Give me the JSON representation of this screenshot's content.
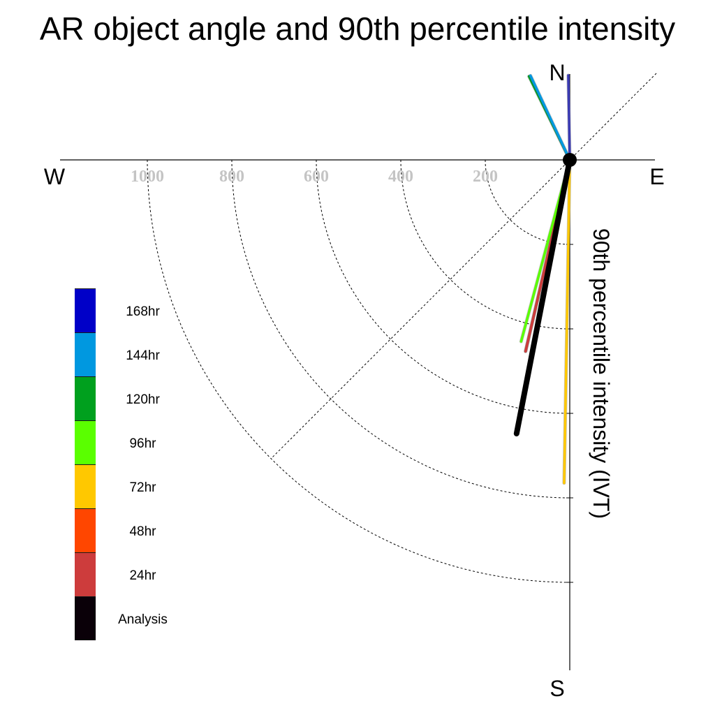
{
  "title": "AR object angle and 90th percentile intensity",
  "compass": {
    "north": "N",
    "south": "S",
    "east": "E",
    "west": "W"
  },
  "radial_label": "90th percentile intensity (IVT)",
  "legend": [
    {
      "label": "168hr",
      "color": "#0000c8"
    },
    {
      "label": "144hr",
      "color": "#0098e0"
    },
    {
      "label": "120hr",
      "color": "#00a01e"
    },
    {
      "label": "96hr",
      "color": "#5aff00"
    },
    {
      "label": "72hr",
      "color": "#ffc800"
    },
    {
      "label": "48hr",
      "color": "#ff4600"
    },
    {
      "label": "24hr",
      "color": "#cd3c3c"
    },
    {
      "label": "Analysis",
      "color": "#0a0008"
    }
  ],
  "chart_data": {
    "type": "polar-vector",
    "title": "AR object angle and 90th percentile intensity",
    "radial_label": "90th percentile intensity (IVT)",
    "radial_ticks": [
      200,
      400,
      600,
      800,
      1000
    ],
    "radial_max": 1200,
    "tick_labels": [
      "200",
      "400",
      "600",
      "800",
      "1000"
    ],
    "angle_convention": "degrees clockwise from North",
    "series": [
      {
        "name": "168hr",
        "color": "#3a3ab4",
        "angle": 359,
        "intensity": 200
      },
      {
        "name": "144hr",
        "color": "#0098e0",
        "angle": 335,
        "intensity": 220
      },
      {
        "name": "120hr",
        "color": "#00a01e",
        "angle": 334,
        "intensity": 220
      },
      {
        "name": "96hr",
        "color": "#5aff00",
        "angle": 195,
        "intensity": 445
      },
      {
        "name": "72hr",
        "color": "#ffc800",
        "angle": 181,
        "intensity": 765
      },
      {
        "name": "48hr",
        "color": "#ff4600",
        "angle": 193,
        "intensity": 465
      },
      {
        "name": "24hr",
        "color": "#cd3c3c",
        "angle": 193,
        "intensity": 465
      },
      {
        "name": "Analysis",
        "color": "#000000",
        "angle": 191,
        "intensity": 660
      }
    ]
  }
}
